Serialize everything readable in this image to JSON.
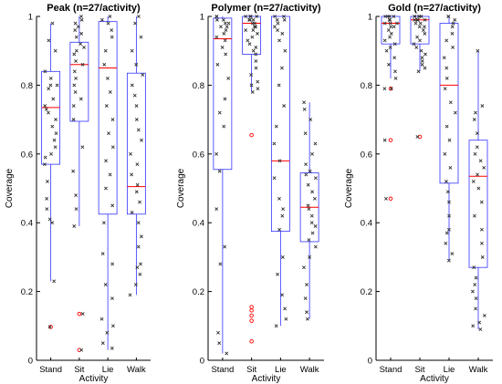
{
  "chart_data": [
    {
      "type": "box",
      "title": "Peak (n=27/activity)",
      "xlabel": "Activity",
      "ylabel": "Coverage",
      "ylim": [
        0,
        1
      ],
      "yticks": [
        "0",
        "0.2",
        "0.4",
        "0.6",
        "0.8",
        "1"
      ],
      "categories": [
        "Stand",
        "Sit",
        "Lie",
        "Walk"
      ],
      "boxes": [
        {
          "category": "Stand",
          "q1": 0.57,
          "median": 0.735,
          "q3": 0.84,
          "whisker_low": 0.23,
          "whisker_high": 0.98,
          "outliers": [
            0.097
          ]
        },
        {
          "category": "Sit",
          "q1": 0.695,
          "median": 0.86,
          "q3": 0.925,
          "whisker_low": 0.39,
          "whisker_high": 1.0,
          "outliers": [
            0.135,
            0.03
          ]
        },
        {
          "category": "Lie",
          "q1": 0.425,
          "median": 0.85,
          "q3": 0.985,
          "whisker_low": 0.03,
          "whisker_high": 1.0,
          "outliers": []
        },
        {
          "category": "Walk",
          "q1": 0.425,
          "median": 0.505,
          "q3": 0.835,
          "whisker_low": 0.19,
          "whisker_high": 1.0,
          "outliers": []
        }
      ],
      "points": [
        [
          0.98,
          0.93,
          0.9,
          0.84,
          0.82,
          0.8,
          0.79,
          0.76,
          0.74,
          0.73,
          0.72,
          0.7,
          0.68,
          0.66,
          0.64,
          0.62,
          0.6,
          0.59,
          0.57,
          0.52,
          0.47,
          0.44,
          0.41,
          0.4,
          0.23,
          0.097,
          0.8
        ],
        [
          1.0,
          0.99,
          0.98,
          0.97,
          0.96,
          0.95,
          0.94,
          0.92,
          0.91,
          0.9,
          0.89,
          0.87,
          0.86,
          0.84,
          0.82,
          0.8,
          0.78,
          0.76,
          0.74,
          0.7,
          0.62,
          0.55,
          0.48,
          0.44,
          0.39,
          0.135,
          0.03
        ],
        [
          1.0,
          0.99,
          0.98,
          0.96,
          0.94,
          0.9,
          0.86,
          0.82,
          0.78,
          0.74,
          0.7,
          0.66,
          0.62,
          0.58,
          0.54,
          0.5,
          0.45,
          0.4,
          0.31,
          0.28,
          0.22,
          0.18,
          0.12,
          0.1,
          0.08,
          0.05,
          0.035
        ],
        [
          1.0,
          0.98,
          0.94,
          0.9,
          0.86,
          0.83,
          0.8,
          0.77,
          0.74,
          0.7,
          0.67,
          0.64,
          0.6,
          0.57,
          0.54,
          0.51,
          0.49,
          0.46,
          0.43,
          0.4,
          0.36,
          0.33,
          0.28,
          0.27,
          0.25,
          0.22,
          0.19
        ]
      ]
    },
    {
      "type": "box",
      "title": "Polymer (n=27/activity)",
      "xlabel": "Activity",
      "ylabel": "Coverage",
      "ylim": [
        0,
        1
      ],
      "yticks": [
        "0",
        "0.2",
        "0.4",
        "0.6",
        "0.8",
        "1"
      ],
      "categories": [
        "Stand",
        "Sit",
        "Lie",
        "Walk"
      ],
      "boxes": [
        {
          "category": "Stand",
          "q1": 0.555,
          "median": 0.935,
          "q3": 0.995,
          "whisker_low": 0.02,
          "whisker_high": 1.0,
          "outliers": []
        },
        {
          "category": "Sit",
          "q1": 0.89,
          "median": 0.98,
          "q3": 1.0,
          "whisker_low": 0.78,
          "whisker_high": 1.0,
          "outliers": [
            0.655,
            0.155,
            0.145,
            0.13,
            0.115,
            0.055
          ]
        },
        {
          "category": "Lie",
          "q1": 0.375,
          "median": 0.58,
          "q3": 1.0,
          "whisker_low": 0.1,
          "whisker_high": 1.0,
          "outliers": []
        },
        {
          "category": "Walk",
          "q1": 0.345,
          "median": 0.445,
          "q3": 0.545,
          "whisker_low": 0.12,
          "whisker_high": 0.75,
          "outliers": []
        }
      ],
      "points": [
        [
          1.0,
          1.0,
          0.99,
          0.99,
          0.98,
          0.98,
          0.97,
          0.97,
          0.96,
          0.95,
          0.94,
          0.93,
          0.91,
          0.89,
          0.86,
          0.82,
          0.76,
          0.72,
          0.68,
          0.6,
          0.55,
          0.44,
          0.33,
          0.28,
          0.08,
          0.05,
          0.02
        ],
        [
          1.0,
          1.0,
          1.0,
          1.0,
          0.99,
          0.99,
          0.99,
          0.98,
          0.98,
          0.97,
          0.97,
          0.96,
          0.96,
          0.95,
          0.94,
          0.93,
          0.92,
          0.91,
          0.9,
          0.89,
          0.87,
          0.85,
          0.83,
          0.81,
          0.8,
          0.78,
          0.79
        ],
        [
          1.0,
          1.0,
          0.99,
          0.99,
          0.98,
          0.97,
          0.96,
          0.95,
          0.93,
          0.9,
          0.85,
          0.8,
          0.74,
          0.68,
          0.63,
          0.58,
          0.53,
          0.47,
          0.44,
          0.42,
          0.38,
          0.3,
          0.25,
          0.19,
          0.15,
          0.12,
          0.1
        ],
        [
          0.75,
          0.73,
          0.7,
          0.66,
          0.63,
          0.6,
          0.57,
          0.55,
          0.54,
          0.53,
          0.51,
          0.49,
          0.47,
          0.45,
          0.44,
          0.42,
          0.4,
          0.39,
          0.37,
          0.35,
          0.33,
          0.3,
          0.27,
          0.22,
          0.18,
          0.14,
          0.12
        ]
      ]
    },
    {
      "type": "box",
      "title": "Gold (n=27/activity)",
      "xlabel": "Activity",
      "ylabel": "Coverage",
      "ylim": [
        0,
        1
      ],
      "yticks": [
        "0",
        "0.2",
        "0.4",
        "0.6",
        "0.8",
        "1"
      ],
      "categories": [
        "Stand",
        "Sit",
        "Lie",
        "Walk"
      ],
      "boxes": [
        {
          "category": "Stand",
          "q1": 0.92,
          "median": 0.98,
          "q3": 1.0,
          "whisker_low": 0.82,
          "whisker_high": 1.0,
          "outliers": [
            0.79,
            0.64,
            0.47
          ]
        },
        {
          "category": "Sit",
          "q1": 0.92,
          "median": 0.99,
          "q3": 1.0,
          "whisker_low": 0.84,
          "whisker_high": 1.0,
          "outliers": [
            0.65
          ]
        },
        {
          "category": "Lie",
          "q1": 0.515,
          "median": 0.8,
          "q3": 0.98,
          "whisker_low": 0.29,
          "whisker_high": 1.0,
          "outliers": []
        },
        {
          "category": "Walk",
          "q1": 0.27,
          "median": 0.535,
          "q3": 0.64,
          "whisker_low": 0.09,
          "whisker_high": 0.9,
          "outliers": []
        }
      ],
      "points": [
        [
          1.0,
          1.0,
          1.0,
          1.0,
          0.99,
          0.99,
          0.99,
          0.98,
          0.98,
          0.98,
          0.97,
          0.97,
          0.96,
          0.95,
          0.94,
          0.93,
          0.92,
          0.91,
          0.9,
          0.88,
          0.86,
          0.84,
          0.82,
          0.79,
          0.79,
          0.64,
          0.47
        ],
        [
          1.0,
          1.0,
          1.0,
          1.0,
          1.0,
          0.99,
          0.99,
          0.99,
          0.99,
          0.98,
          0.98,
          0.97,
          0.97,
          0.96,
          0.95,
          0.94,
          0.93,
          0.92,
          0.91,
          0.9,
          0.89,
          0.88,
          0.87,
          0.86,
          0.85,
          0.84,
          0.65
        ],
        [
          1.0,
          1.0,
          0.99,
          0.98,
          0.97,
          0.95,
          0.93,
          0.91,
          0.88,
          0.85,
          0.82,
          0.79,
          0.75,
          0.72,
          0.68,
          0.64,
          0.6,
          0.56,
          0.52,
          0.49,
          0.46,
          0.42,
          0.38,
          0.37,
          0.34,
          0.31,
          0.29
        ],
        [
          0.9,
          0.74,
          0.72,
          0.7,
          0.66,
          0.62,
          0.6,
          0.58,
          0.56,
          0.54,
          0.52,
          0.5,
          0.46,
          0.42,
          0.38,
          0.34,
          0.3,
          0.27,
          0.24,
          0.22,
          0.2,
          0.18,
          0.15,
          0.13,
          0.11,
          0.1,
          0.09
        ]
      ]
    }
  ]
}
